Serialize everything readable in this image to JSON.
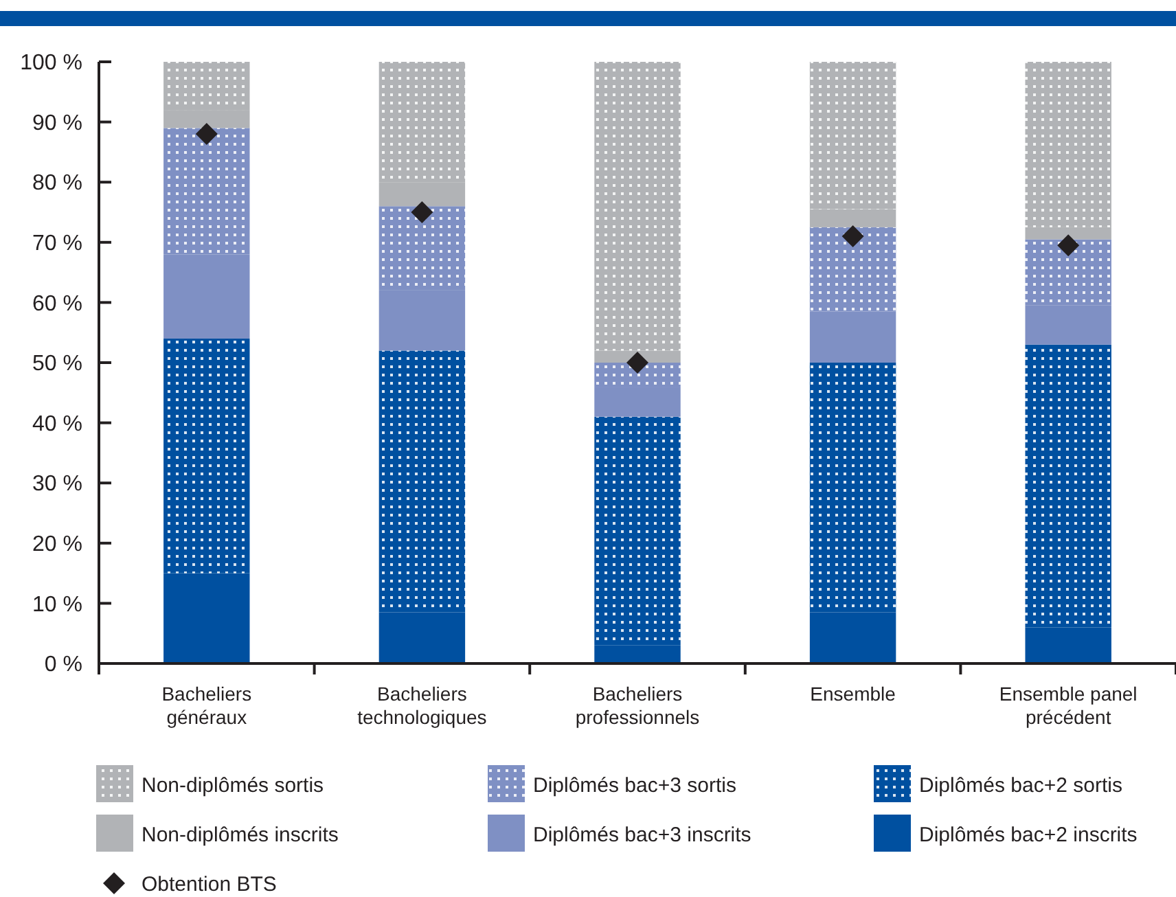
{
  "chart_data": {
    "type": "bar",
    "stacked": true,
    "categories": [
      "Bacheliers\ngénéraux",
      "Bacheliers\ntechnologiques",
      "Bacheliers\nprofessionnels",
      "Ensemble",
      "Ensemble panel\nprécédent"
    ],
    "ylim": [
      0,
      100
    ],
    "yticks": [
      {
        "value": 0,
        "label": "0 %"
      },
      {
        "value": 10,
        "label": "10 %"
      },
      {
        "value": 20,
        "label": "20 %"
      },
      {
        "value": 30,
        "label": "30 %"
      },
      {
        "value": 40,
        "label": "40 %"
      },
      {
        "value": 50,
        "label": "50 %"
      },
      {
        "value": 60,
        "label": "60 %"
      },
      {
        "value": 70,
        "label": "70 %"
      },
      {
        "value": 80,
        "label": "80 %"
      },
      {
        "value": 90,
        "label": "90 %"
      },
      {
        "value": 100,
        "label": "100 %"
      }
    ],
    "grid": false,
    "legend": "bottom",
    "series": [
      {
        "name": "Diplômés bac+2 inscrits",
        "color": "#0050a0",
        "values": [
          15,
          8.5,
          3,
          8.5,
          6
        ]
      },
      {
        "name": "Diplômés bac+2 sortis",
        "color": "#0050a0",
        "values": [
          39,
          43.5,
          38,
          41.5,
          47
        ]
      },
      {
        "name": "Diplômés bac+3 inscrits",
        "color": "#7f90c4",
        "values": [
          14,
          10,
          5,
          8.5,
          6.5
        ]
      },
      {
        "name": "Diplômés bac+3 sortis",
        "color": "#7f90c4",
        "values": [
          21,
          14,
          4,
          14,
          11
        ]
      },
      {
        "name": "Non-diplômés inscrits",
        "color": "#b1b3b6",
        "values": [
          3,
          4,
          2,
          3,
          2
        ]
      },
      {
        "name": "Non-diplômés sortis",
        "color": "#b1b3b6",
        "values": [
          8,
          20,
          48,
          24.5,
          27.5
        ]
      },
      {
        "name": "Obtention BTS",
        "type": "scatter",
        "marker": "diamond",
        "color": "#231f20",
        "x": [
          "Bacheliers\ngénéraux",
          "Bacheliers\ntechnologiques",
          "Bacheliers\nprofessionnels",
          "Ensemble",
          "Ensemble panel\nprécédent"
        ],
        "values": [
          88,
          75,
          50,
          71,
          69.5
        ]
      }
    ]
  }
}
